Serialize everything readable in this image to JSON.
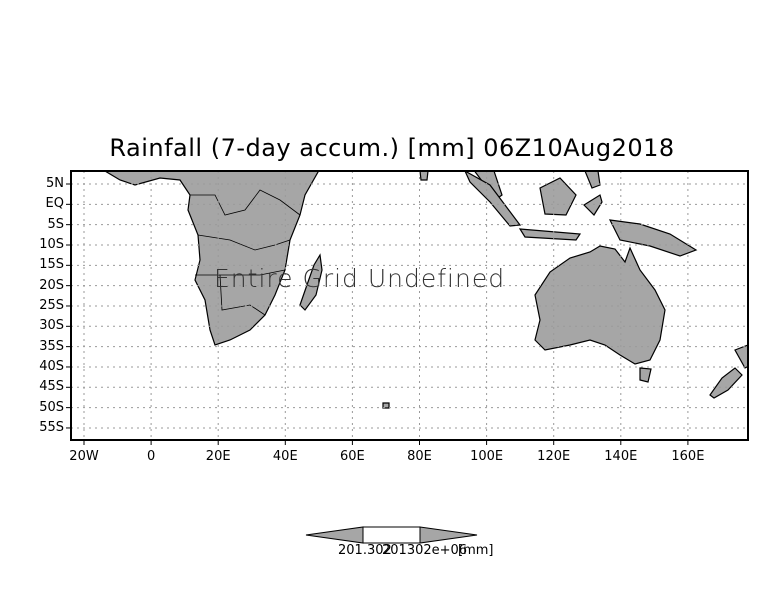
{
  "title": "Rainfall (7-day accum.) [mm] 06Z10Aug2018",
  "message": "Entire Grid Undefined",
  "y_axis_labels": [
    "5N",
    "EQ",
    "5S",
    "10S",
    "15S",
    "20S",
    "25S",
    "30S",
    "35S",
    "40S",
    "45S",
    "50S",
    "55S"
  ],
  "x_axis_labels": [
    "20W",
    "0",
    "20E",
    "40E",
    "60E",
    "80E",
    "100E",
    "120E",
    "140E",
    "160E"
  ],
  "colorbar": {
    "label_left": "201.302",
    "label_right": "201302e+06",
    "units": "[mm]"
  },
  "colors": {
    "land": "#a6a6a6",
    "grid": "#9a9a9a",
    "frame": "#000000"
  }
}
